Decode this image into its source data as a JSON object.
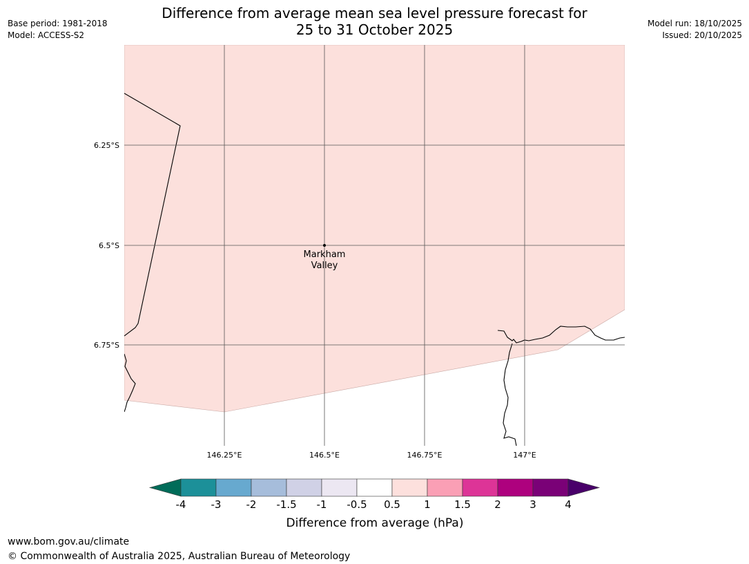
{
  "header": {
    "title_line1": "Difference from average mean sea level pressure forecast for",
    "title_line2": "25 to 31 October 2025",
    "base_period": "Base period: 1981-2018",
    "model": "Model: ACCESS-S2",
    "model_run": "Model run: 18/10/2025",
    "issued": "Issued: 20/10/2025"
  },
  "map": {
    "lat_labels": [
      "6.25°S",
      "6.5°S",
      "6.75°S"
    ],
    "lon_labels": [
      "146.25°E",
      "146.5°E",
      "146.75°E",
      "147°E"
    ],
    "place": {
      "line1": "Markham",
      "line2": "Valley"
    },
    "fill_color": "#fce0dc",
    "grid_color": "#555555"
  },
  "colorbar": {
    "title": "Difference from average (hPa)",
    "tick_labels": [
      "-4",
      "-3",
      "-2",
      "-1.5",
      "-1",
      "-0.5",
      "0.5",
      "1",
      "1.5",
      "2",
      "3",
      "4"
    ],
    "colors": [
      "#1c9099",
      "#67a9cf",
      "#a6bddb",
      "#d0d1e6",
      "#ece7f2",
      "#ffffff",
      "#fde0dd",
      "#fa9fb5",
      "#dd3497",
      "#ae017e",
      "#7a0177"
    ],
    "low_extend_color": "#016c59",
    "high_extend_color": "#49006a"
  },
  "footer": {
    "url": "www.bom.gov.au/climate",
    "copyright": "© Commonwealth of Australia 2025, Australian Bureau of Meteorology"
  }
}
